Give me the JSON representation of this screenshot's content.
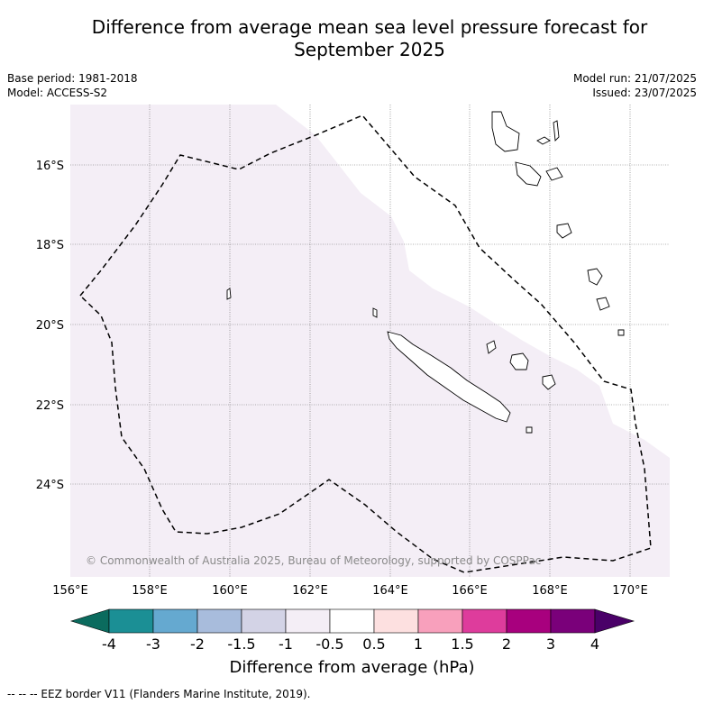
{
  "title_line1": "Difference from average mean sea level pressure forecast for",
  "title_line2": "September 2025",
  "base_period": "Base period: 1981-2018",
  "model": "Model: ACCESS-S2",
  "model_run": "Model run: 21/07/2025",
  "issued": "Issued: 23/07/2025",
  "copyright": "© Commonwealth of Australia 2025, Bureau of Meteorology, supported by COSPPac",
  "lon_labels": [
    "156°E",
    "158°E",
    "160°E",
    "162°E",
    "164°E",
    "166°E",
    "168°E",
    "170°E"
  ],
  "lat_labels": [
    "16°S",
    "18°S",
    "20°S",
    "22°S",
    "24°S"
  ],
  "colorbar": {
    "ticks": [
      "-4",
      "-3",
      "-2",
      "-1.5",
      "-1",
      "-0.5",
      "0.5",
      "1",
      "1.5",
      "2",
      "3",
      "4"
    ],
    "colors": [
      "#0b6b5e",
      "#1b8f95",
      "#65a9d0",
      "#a8bcdc",
      "#d3d3e6",
      "#f4eef6",
      "#ffffff",
      "#fde0e0",
      "#f8a0bc",
      "#de3c9c",
      "#a8007e",
      "#7a007a",
      "#4a0068"
    ],
    "title": "Difference from average (hPa)"
  },
  "footnote": "-- -- -- EEZ border V11 (Flanders Marine Institute, 2019).",
  "field": {
    "shaded_range": "-0.5 to -1 (light lavender)",
    "fill_color": "#f4eef6"
  }
}
